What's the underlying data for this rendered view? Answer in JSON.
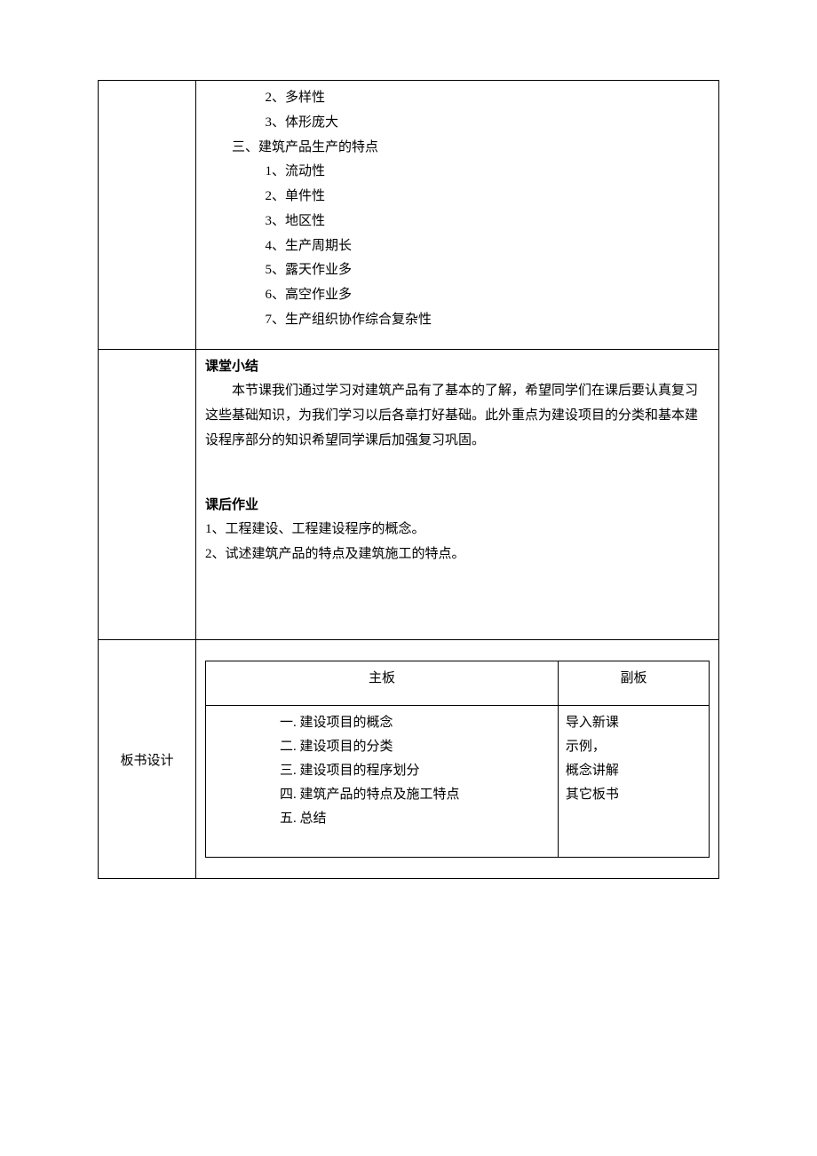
{
  "section1": {
    "items_top": [
      "2、多样性",
      "3、体形庞大"
    ],
    "heading": "三、建筑产品生产的特点",
    "items_sub": [
      "1、流动性",
      "2、单件性",
      "3、地区性",
      "4、生产周期长",
      "5、露天作业多",
      "6、高空作业多",
      "7、生产组织协作综合复杂性"
    ]
  },
  "section2": {
    "summary_title": "课堂小结",
    "summary_text": "本节课我们通过学习对建筑产品有了基本的了解，希望同学们在课后要认真复习这些基础知识，为我们学习以后各章打好基础。此外重点为建设项目的分类和基本建设程序部分的知识希望同学课后加强复习巩固。",
    "homework_title": "课后作业",
    "homework_items": [
      "1、工程建设、工程建设程序的概念。",
      "2、试述建筑产品的特点及建筑施工的特点。"
    ]
  },
  "section3": {
    "left_label": "板书设计",
    "inner_table": {
      "header_main": "主板",
      "header_sub": "副板",
      "main_items": [
        "一. 建设项目的概念",
        "二. 建设项目的分类",
        "三. 建设项目的程序划分",
        "四. 建筑产品的特点及施工特点",
        "五. 总结"
      ],
      "sub_items": [
        "导入新课",
        "示例，",
        "概念讲解",
        "其它板书"
      ]
    }
  },
  "style": {
    "font_family": "SimSun",
    "font_size_pt": 11,
    "text_color": "#000000",
    "background_color": "#ffffff",
    "border_color": "#000000"
  }
}
